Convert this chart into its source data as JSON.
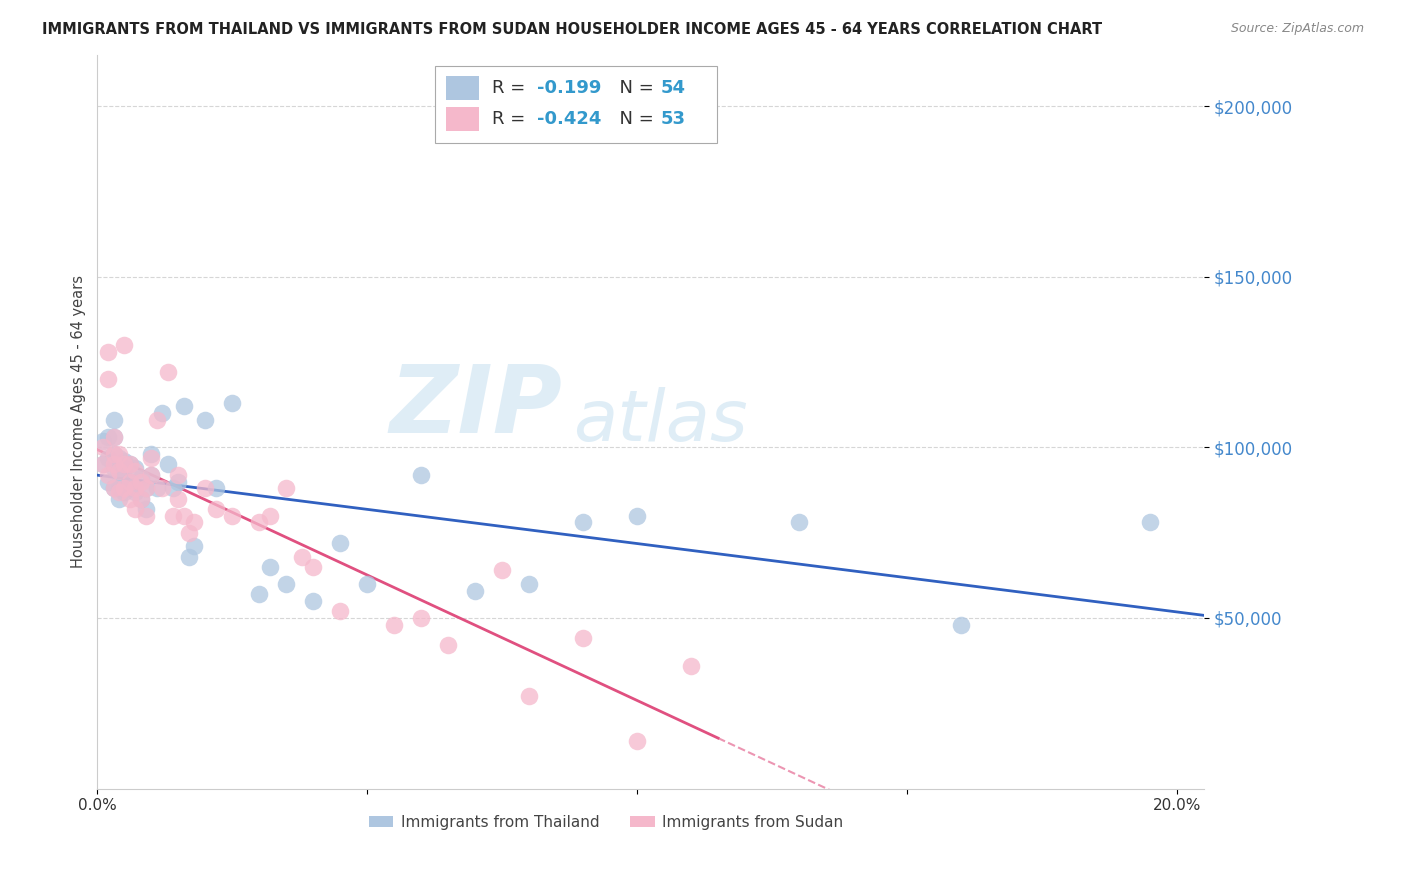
{
  "title": "IMMIGRANTS FROM THAILAND VS IMMIGRANTS FROM SUDAN HOUSEHOLDER INCOME AGES 45 - 64 YEARS CORRELATION CHART",
  "source": "Source: ZipAtlas.com",
  "ylabel": "Householder Income Ages 45 - 64 years",
  "xlim": [
    0.0,
    0.205
  ],
  "ylim": [
    0,
    215000
  ],
  "yticks": [
    50000,
    100000,
    150000,
    200000
  ],
  "ytick_labels": [
    "$50,000",
    "$100,000",
    "$150,000",
    "$200,000"
  ],
  "xticks": [
    0.0,
    0.05,
    0.1,
    0.15,
    0.2
  ],
  "xtick_labels": [
    "0.0%",
    "",
    "",
    "",
    "20.0%"
  ],
  "watermark_zip": "ZIP",
  "watermark_atlas": "atlas",
  "thailand_color": "#aec6e0",
  "sudan_color": "#f5b8cb",
  "thailand_R": "-0.199",
  "thailand_N": "54",
  "sudan_R": "-0.424",
  "sudan_N": "53",
  "thailand_line_color": "#3060c0",
  "sudan_line_color": "#e05080",
  "background_color": "#ffffff",
  "grid_color": "#cccccc",
  "thailand_x": [
    0.001,
    0.001,
    0.002,
    0.002,
    0.002,
    0.003,
    0.003,
    0.003,
    0.003,
    0.003,
    0.004,
    0.004,
    0.004,
    0.004,
    0.005,
    0.005,
    0.005,
    0.005,
    0.006,
    0.006,
    0.006,
    0.007,
    0.007,
    0.008,
    0.008,
    0.009,
    0.009,
    0.01,
    0.01,
    0.011,
    0.012,
    0.013,
    0.014,
    0.015,
    0.016,
    0.017,
    0.018,
    0.02,
    0.022,
    0.025,
    0.03,
    0.032,
    0.035,
    0.04,
    0.045,
    0.05,
    0.06,
    0.07,
    0.08,
    0.09,
    0.1,
    0.13,
    0.16,
    0.195
  ],
  "thailand_y": [
    95000,
    102000,
    90000,
    97000,
    103000,
    88000,
    94000,
    98000,
    103000,
    108000,
    88000,
    93000,
    97000,
    85000,
    91000,
    96000,
    87000,
    94000,
    88000,
    90000,
    95000,
    87000,
    94000,
    85000,
    91000,
    82000,
    88000,
    92000,
    98000,
    88000,
    110000,
    95000,
    88000,
    90000,
    112000,
    68000,
    71000,
    108000,
    88000,
    113000,
    57000,
    65000,
    60000,
    55000,
    72000,
    60000,
    92000,
    58000,
    60000,
    78000,
    80000,
    78000,
    48000,
    78000
  ],
  "sudan_x": [
    0.001,
    0.001,
    0.002,
    0.002,
    0.002,
    0.003,
    0.003,
    0.003,
    0.003,
    0.004,
    0.004,
    0.004,
    0.005,
    0.005,
    0.005,
    0.006,
    0.006,
    0.006,
    0.007,
    0.007,
    0.007,
    0.008,
    0.008,
    0.009,
    0.009,
    0.01,
    0.01,
    0.011,
    0.012,
    0.013,
    0.014,
    0.015,
    0.015,
    0.016,
    0.017,
    0.018,
    0.02,
    0.022,
    0.025,
    0.03,
    0.032,
    0.035,
    0.038,
    0.04,
    0.045,
    0.055,
    0.06,
    0.065,
    0.075,
    0.08,
    0.09,
    0.1,
    0.11
  ],
  "sudan_y": [
    95000,
    100000,
    120000,
    128000,
    92000,
    98000,
    103000,
    88000,
    95000,
    87000,
    93000,
    98000,
    130000,
    88000,
    95000,
    85000,
    90000,
    95000,
    82000,
    88000,
    93000,
    85000,
    90000,
    80000,
    88000,
    92000,
    97000,
    108000,
    88000,
    122000,
    80000,
    85000,
    92000,
    80000,
    75000,
    78000,
    88000,
    82000,
    80000,
    78000,
    80000,
    88000,
    68000,
    65000,
    52000,
    48000,
    50000,
    42000,
    64000,
    27000,
    44000,
    14000,
    36000
  ]
}
